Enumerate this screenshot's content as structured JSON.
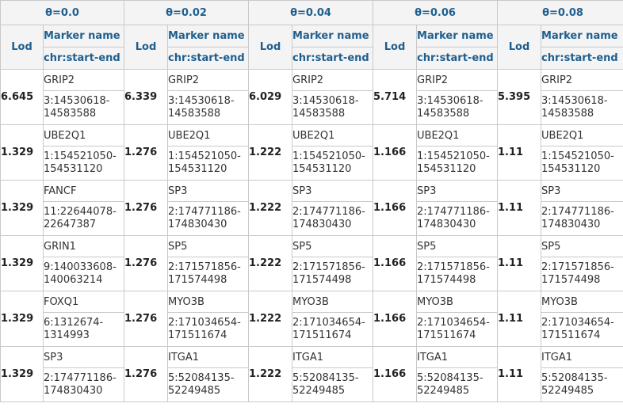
{
  "thetas": [
    "θ=0.0",
    "θ=0.02",
    "θ=0.04",
    "θ=0.06",
    "θ=0.08"
  ],
  "headers": {
    "lod": "Lod",
    "marker_name": "Marker name",
    "position": "chr:start-end"
  },
  "rows": [
    {
      "cells": [
        {
          "lod": "6.645",
          "marker": "GRIP2",
          "pos_a": "3:14530618-",
          "pos_b": "14583588"
        },
        {
          "lod": "6.339",
          "marker": "GRIP2",
          "pos_a": "3:14530618-",
          "pos_b": "14583588"
        },
        {
          "lod": "6.029",
          "marker": "GRIP2",
          "pos_a": "3:14530618-",
          "pos_b": "14583588"
        },
        {
          "lod": "5.714",
          "marker": "GRIP2",
          "pos_a": "3:14530618-",
          "pos_b": "14583588"
        },
        {
          "lod": "5.395",
          "marker": "GRIP2",
          "pos_a": "3:14530618-",
          "pos_b": "14583588"
        }
      ]
    },
    {
      "cells": [
        {
          "lod": "1.329",
          "marker": "UBE2Q1",
          "pos_a": "1:154521050-",
          "pos_b": "154531120"
        },
        {
          "lod": "1.276",
          "marker": "UBE2Q1",
          "pos_a": "1:154521050-",
          "pos_b": "154531120"
        },
        {
          "lod": "1.222",
          "marker": "UBE2Q1",
          "pos_a": "1:154521050-",
          "pos_b": "154531120"
        },
        {
          "lod": "1.166",
          "marker": "UBE2Q1",
          "pos_a": "1:154521050-",
          "pos_b": "154531120"
        },
        {
          "lod": "1.11",
          "marker": "UBE2Q1",
          "pos_a": "1:154521050-",
          "pos_b": "154531120"
        }
      ]
    },
    {
      "cells": [
        {
          "lod": "1.329",
          "marker": "FANCF",
          "pos_a": "11:22644078-",
          "pos_b": "22647387"
        },
        {
          "lod": "1.276",
          "marker": "SP3",
          "pos_a": "2:174771186-",
          "pos_b": "174830430"
        },
        {
          "lod": "1.222",
          "marker": "SP3",
          "pos_a": "2:174771186-",
          "pos_b": "174830430"
        },
        {
          "lod": "1.166",
          "marker": "SP3",
          "pos_a": "2:174771186-",
          "pos_b": "174830430"
        },
        {
          "lod": "1.11",
          "marker": "SP3",
          "pos_a": "2:174771186-",
          "pos_b": "174830430"
        }
      ]
    },
    {
      "cells": [
        {
          "lod": "1.329",
          "marker": "GRIN1",
          "pos_a": "9:140033608-",
          "pos_b": "140063214"
        },
        {
          "lod": "1.276",
          "marker": "SP5",
          "pos_a": "2:171571856-",
          "pos_b": "171574498"
        },
        {
          "lod": "1.222",
          "marker": "SP5",
          "pos_a": "2:171571856-",
          "pos_b": "171574498"
        },
        {
          "lod": "1.166",
          "marker": "SP5",
          "pos_a": "2:171571856-",
          "pos_b": "171574498"
        },
        {
          "lod": "1.11",
          "marker": "SP5",
          "pos_a": "2:171571856-",
          "pos_b": "171574498"
        }
      ]
    },
    {
      "cells": [
        {
          "lod": "1.329",
          "marker": "FOXQ1",
          "pos_a": "6:1312674-",
          "pos_b": "1314993"
        },
        {
          "lod": "1.276",
          "marker": "MYO3B",
          "pos_a": "2:171034654-",
          "pos_b": "171511674"
        },
        {
          "lod": "1.222",
          "marker": "MYO3B",
          "pos_a": "2:171034654-",
          "pos_b": "171511674"
        },
        {
          "lod": "1.166",
          "marker": "MYO3B",
          "pos_a": "2:171034654-",
          "pos_b": "171511674"
        },
        {
          "lod": "1.11",
          "marker": "MYO3B",
          "pos_a": "2:171034654-",
          "pos_b": "171511674"
        }
      ]
    },
    {
      "cells": [
        {
          "lod": "1.329",
          "marker": "SP3",
          "pos_a": "2:174771186-",
          "pos_b": "174830430"
        },
        {
          "lod": "1.276",
          "marker": "ITGA1",
          "pos_a": "5:52084135-",
          "pos_b": "52249485"
        },
        {
          "lod": "1.222",
          "marker": "ITGA1",
          "pos_a": "5:52084135-",
          "pos_b": "52249485"
        },
        {
          "lod": "1.166",
          "marker": "ITGA1",
          "pos_a": "5:52084135-",
          "pos_b": "52249485"
        },
        {
          "lod": "1.11",
          "marker": "ITGA1",
          "pos_a": "5:52084135-",
          "pos_b": "52249485"
        }
      ]
    }
  ]
}
